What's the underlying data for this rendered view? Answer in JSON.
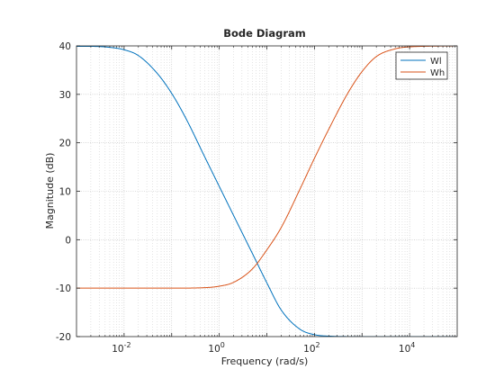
{
  "chart_data": {
    "type": "line",
    "title": "Bode Diagram",
    "xlabel": "Frequency  (rad/s)",
    "ylabel": "Magnitude (dB)",
    "xscale": "log",
    "xlim": [
      0.001,
      100000
    ],
    "ylim": [
      -20,
      40
    ],
    "x_ticks": [
      {
        "value": 0.01,
        "base": "10",
        "exp": "-2"
      },
      {
        "value": 1,
        "base": "10",
        "exp": "0"
      },
      {
        "value": 100,
        "base": "10",
        "exp": "2"
      },
      {
        "value": 10000,
        "base": "10",
        "exp": "4"
      }
    ],
    "y_ticks": [
      {
        "value": -20,
        "label": "-20"
      },
      {
        "value": -10,
        "label": "-10"
      },
      {
        "value": 0,
        "label": "0"
      },
      {
        "value": 10,
        "label": "10"
      },
      {
        "value": 20,
        "label": "20"
      },
      {
        "value": 30,
        "label": "30"
      },
      {
        "value": 40,
        "label": "40"
      }
    ],
    "grid": true,
    "minor_grid": true,
    "legend_position": "top-right",
    "series": [
      {
        "name": "Wl",
        "color": "#0072BD",
        "x": [
          0.001,
          0.002,
          0.005,
          0.01,
          0.02,
          0.05,
          0.1,
          0.2,
          0.5,
          1,
          2,
          5,
          10,
          20,
          50,
          100,
          200,
          1000,
          10000,
          100000
        ],
        "y": [
          39.9,
          39.9,
          39.7,
          39.2,
          38.0,
          34.3,
          30.2,
          25.0,
          17.0,
          11.0,
          5.0,
          -2.9,
          -8.9,
          -14.5,
          -18.5,
          -19.6,
          -19.9,
          -20.0,
          -20.0,
          -20.0
        ]
      },
      {
        "name": "Wh",
        "color": "#D95319",
        "x": [
          0.001,
          0.01,
          0.1,
          0.5,
          1,
          2,
          5,
          10,
          20,
          50,
          100,
          200,
          500,
          1000,
          2000,
          5000,
          10000,
          100000
        ],
        "y": [
          -10.0,
          -10.0,
          -10.0,
          -9.9,
          -9.6,
          -8.8,
          -6.0,
          -2.1,
          2.5,
          10.5,
          16.8,
          22.8,
          30.2,
          34.7,
          37.8,
          39.4,
          39.8,
          40.0
        ]
      }
    ]
  }
}
